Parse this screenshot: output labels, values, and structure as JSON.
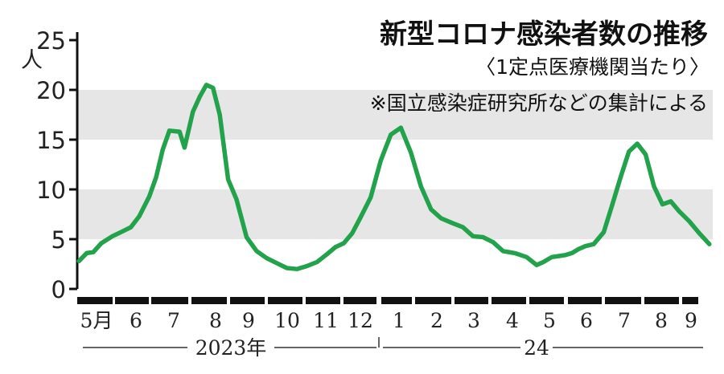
{
  "chart_data": {
    "type": "line",
    "title": "新型コロナ感染者数の推移",
    "subtitle": "〈1定点医療機関当たり〉",
    "note": "※国立感染症研究所などの集計による",
    "ylabel": "人",
    "ylim": [
      0,
      25
    ],
    "yticks": [
      0,
      5,
      10,
      15,
      20,
      25
    ],
    "shaded_bands": [
      [
        5,
        10
      ],
      [
        15,
        20
      ]
    ],
    "month_labels": [
      "5月",
      "6",
      "7",
      "8",
      "9",
      "10",
      "11",
      "12",
      "1",
      "2",
      "3",
      "4",
      "5",
      "6",
      "7",
      "8",
      "9"
    ],
    "year_labels": [
      "2023年",
      "24"
    ],
    "line_color": "#22a24a",
    "band_color": "#e6e6e6",
    "series": [
      {
        "x": [
          0.05,
          0.28,
          0.48,
          0.72,
          1.05,
          1.3,
          1.6,
          1.85,
          2.15,
          2.35,
          2.55,
          2.75,
          3.05,
          3.2,
          3.45,
          3.65,
          3.85,
          4.05,
          4.25,
          4.5,
          4.75,
          5.05,
          5.35,
          5.65,
          5.95,
          6.25,
          6.55,
          6.85,
          7.15,
          7.45,
          7.7,
          7.95,
          8.2,
          8.45,
          8.75,
          9.05,
          9.35,
          9.65,
          9.95,
          10.25,
          10.55,
          10.85,
          11.2,
          11.5,
          11.8,
          12.1,
          12.4,
          12.7,
          13.05,
          13.4,
          13.7,
          13.9,
          14.15,
          14.35,
          14.55,
          14.75,
          14.95,
          15.15,
          15.4,
          15.7,
          15.95
        ],
        "values": [
          2.8,
          3.6,
          3.7,
          4.6,
          5.3,
          5.7,
          6.2,
          7.3,
          9.3,
          11.2,
          14.0,
          15.9,
          15.8,
          14.2,
          17.8,
          19.3,
          20.5,
          20.2,
          17.5,
          11.0,
          9.0,
          5.2,
          3.8,
          3.1,
          2.6,
          2.1,
          2.0,
          2.3,
          2.7,
          3.5,
          4.2,
          4.6,
          5.6,
          7.2,
          9.2,
          12.9,
          15.5,
          16.2,
          13.7,
          10.3,
          8.0,
          7.1,
          6.6,
          6.2,
          5.3,
          5.2,
          4.7,
          3.8,
          3.6,
          3.2,
          2.4,
          2.7,
          3.2,
          3.3,
          3.4,
          3.6,
          4.0,
          4.3,
          4.5,
          5.7,
          8.4
        ]
      },
      {
        "x": [
          15.95,
          16.2,
          16.45,
          16.7,
          16.95,
          17.2,
          17.45,
          17.7,
          17.95,
          18.25,
          18.55,
          18.85
        ],
        "values": [
          8.4,
          11.2,
          13.8,
          14.6,
          13.5,
          10.3,
          8.5,
          8.8,
          7.8,
          6.8,
          5.6,
          4.5
        ]
      }
    ]
  }
}
